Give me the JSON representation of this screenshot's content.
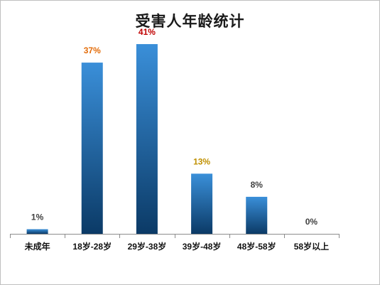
{
  "chart_data": {
    "type": "bar",
    "title": "受害人年龄统计",
    "xlabel": "",
    "ylabel": "",
    "categories": [
      "未成年",
      "18岁-28岁",
      "29岁-38岁",
      "39岁-48岁",
      "48岁-58岁",
      "58岁以上"
    ],
    "values": [
      1,
      37,
      41,
      13,
      8,
      0
    ],
    "data_labels": [
      "1%",
      "37%",
      "41%",
      "13%",
      "8%",
      "0%"
    ],
    "label_colors": [
      "#404040",
      "#e36c09",
      "#c00000",
      "#c09000",
      "#404040",
      "#404040"
    ],
    "bar_color_top": "#3a8fd9",
    "bar_color_bottom": "#0b3a66",
    "ylim": [
      0,
      45
    ],
    "grid": false,
    "legend": "none"
  }
}
